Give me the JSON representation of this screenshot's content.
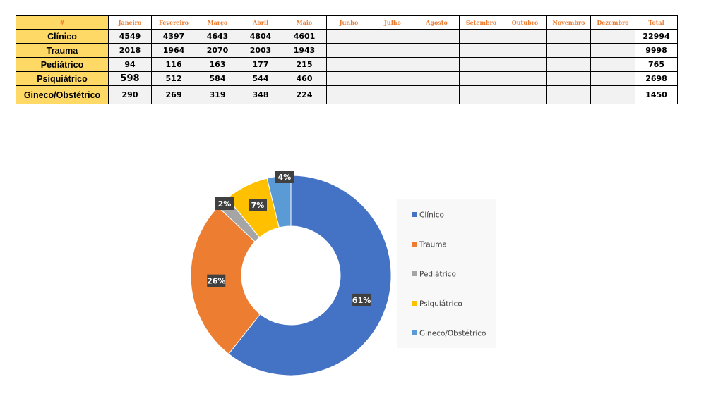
{
  "table": {
    "corner": "#",
    "columns": [
      "Janeiro",
      "Fevereiro",
      "Março",
      "Abril",
      "Maio",
      "Junho",
      "Julho",
      "Agosto",
      "Setembro",
      "Outubro",
      "Novembro",
      "Dezembro",
      "Total"
    ],
    "rows": [
      {
        "label": "Clínico",
        "values": [
          "4549",
          "4397",
          "4643",
          "4804",
          "4601",
          "",
          "",
          "",
          "",
          "",
          "",
          "",
          ""
        ],
        "total": "22994"
      },
      {
        "label": "Trauma",
        "values": [
          "2018",
          "1964",
          "2070",
          "2003",
          "1943",
          "",
          "",
          "",
          "",
          "",
          "",
          "",
          ""
        ],
        "total": "9998"
      },
      {
        "label": "Pediátrico",
        "values": [
          "94",
          "116",
          "163",
          "177",
          "215",
          "",
          "",
          "",
          "",
          "",
          "",
          "",
          ""
        ],
        "total": "765"
      },
      {
        "label": "Psiquiátrico",
        "values": [
          "598",
          "512",
          "584",
          "544",
          "460",
          "",
          "",
          "",
          "",
          "",
          "",
          "",
          ""
        ],
        "total": "2698"
      },
      {
        "label": "Gineco/Obstétrico",
        "values": [
          "290",
          "269",
          "319",
          "348",
          "224",
          "",
          "",
          "",
          "",
          "",
          "",
          "",
          ""
        ],
        "total": "1450"
      }
    ]
  },
  "chart_data": {
    "type": "pie",
    "variant": "doughnut",
    "categories": [
      "Clínico",
      "Trauma",
      "Pediátrico",
      "Psiquiátrico",
      "Gineco/Obstétrico"
    ],
    "values": [
      22994,
      9998,
      765,
      2698,
      1450
    ],
    "data_labels": [
      "61%",
      "26%",
      "2%",
      "7%",
      "4%"
    ],
    "colors": [
      "#4472c4",
      "#ed7d31",
      "#a5a5a5",
      "#ffc000",
      "#5b9bd5"
    ],
    "legend_position": "right",
    "title": ""
  },
  "colors": {
    "header_text": "#ed7d31",
    "row_header_bg": "#ffd966",
    "cell_bg": "#f2f2f2",
    "label_box": "#404040",
    "legend_bg": "#f8f8f8"
  }
}
